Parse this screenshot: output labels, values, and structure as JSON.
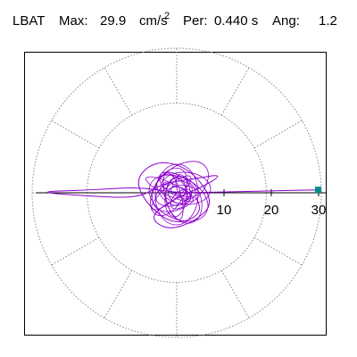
{
  "header": {
    "station": "LBAT",
    "max_label": "Max:",
    "max_value": "29.9",
    "max_unit": "cm/s",
    "max_unit_power": "2",
    "period_label": "Per:",
    "period_value": "0.440 s",
    "angle_label": "Ang:",
    "angle_value": "1.2"
  },
  "chart_data": {
    "type": "polar-particle-motion",
    "radial_ticks": [
      10,
      20,
      30
    ],
    "radial_tick_labels": [
      "10",
      "20",
      "30"
    ],
    "radial_max": 30,
    "angle_deg": 1.2,
    "max_amplitude": 29.9,
    "colors": {
      "trace": "#8b00cc",
      "marker": "#008b8b",
      "grid": "#888888",
      "axis": "#000000"
    },
    "trace_description_points": [
      [
        29.9,
        0.6
      ],
      [
        20,
        0.4
      ],
      [
        12,
        0.2
      ],
      [
        5,
        0.1
      ],
      [
        0,
        0
      ],
      [
        -8,
        1.2
      ],
      [
        -18,
        0.6
      ],
      [
        -30,
        0.2
      ],
      [
        -20,
        -0.6
      ],
      [
        -8,
        -1.2
      ],
      [
        -3,
        2
      ],
      [
        4,
        3
      ],
      [
        10,
        4
      ],
      [
        5,
        1
      ],
      [
        0,
        -1
      ],
      [
        -6,
        -5
      ],
      [
        -2,
        -8
      ],
      [
        4,
        -6
      ],
      [
        8,
        -2
      ],
      [
        3,
        5
      ],
      [
        -4,
        7
      ],
      [
        -9,
        3
      ],
      [
        -6,
        -3
      ],
      [
        0,
        -7
      ],
      [
        6,
        -4
      ],
      [
        2,
        2
      ]
    ]
  }
}
